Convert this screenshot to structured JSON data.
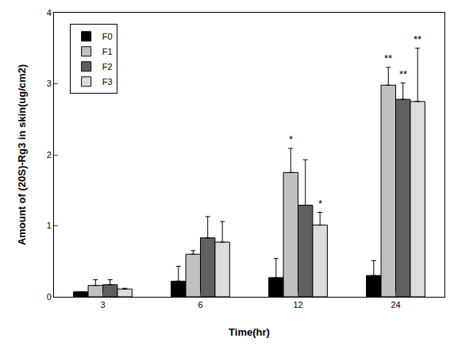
{
  "chart_data": {
    "type": "bar",
    "x_label": "Time(hr)",
    "y_label": "Amount of (20S)-Rg3 in skin(ug/cm2)",
    "categories": [
      "3",
      "6",
      "12",
      "24"
    ],
    "series": [
      {
        "name": "F0",
        "color": "#000000",
        "values": [
          0.07,
          0.22,
          0.27,
          0.3
        ],
        "error": [
          0,
          0.21,
          0.27,
          0.21
        ],
        "significance": [
          null,
          null,
          null,
          null
        ]
      },
      {
        "name": "F1",
        "color": "#c0c0c0",
        "values": [
          0.16,
          0.6,
          1.75,
          2.98
        ],
        "error": [
          0.08,
          0.05,
          0.34,
          0.25
        ],
        "significance": [
          null,
          null,
          "*",
          "**"
        ]
      },
      {
        "name": "F2",
        "color": "#606060",
        "values": [
          0.17,
          0.83,
          1.29,
          2.78
        ],
        "error": [
          0.07,
          0.3,
          0.64,
          0.23
        ],
        "significance": [
          null,
          null,
          null,
          "**"
        ]
      },
      {
        "name": "F3",
        "color": "#dcdcdc",
        "values": [
          0.11,
          0.77,
          1.01,
          2.75
        ],
        "error": [
          0.01,
          0.29,
          0.18,
          0.75
        ],
        "significance": [
          null,
          null,
          "*",
          "**"
        ]
      }
    ],
    "ylim": [
      0,
      4
    ],
    "yticks": [
      0,
      1,
      2,
      3,
      4
    ],
    "grid": false,
    "legend": "top-left"
  }
}
